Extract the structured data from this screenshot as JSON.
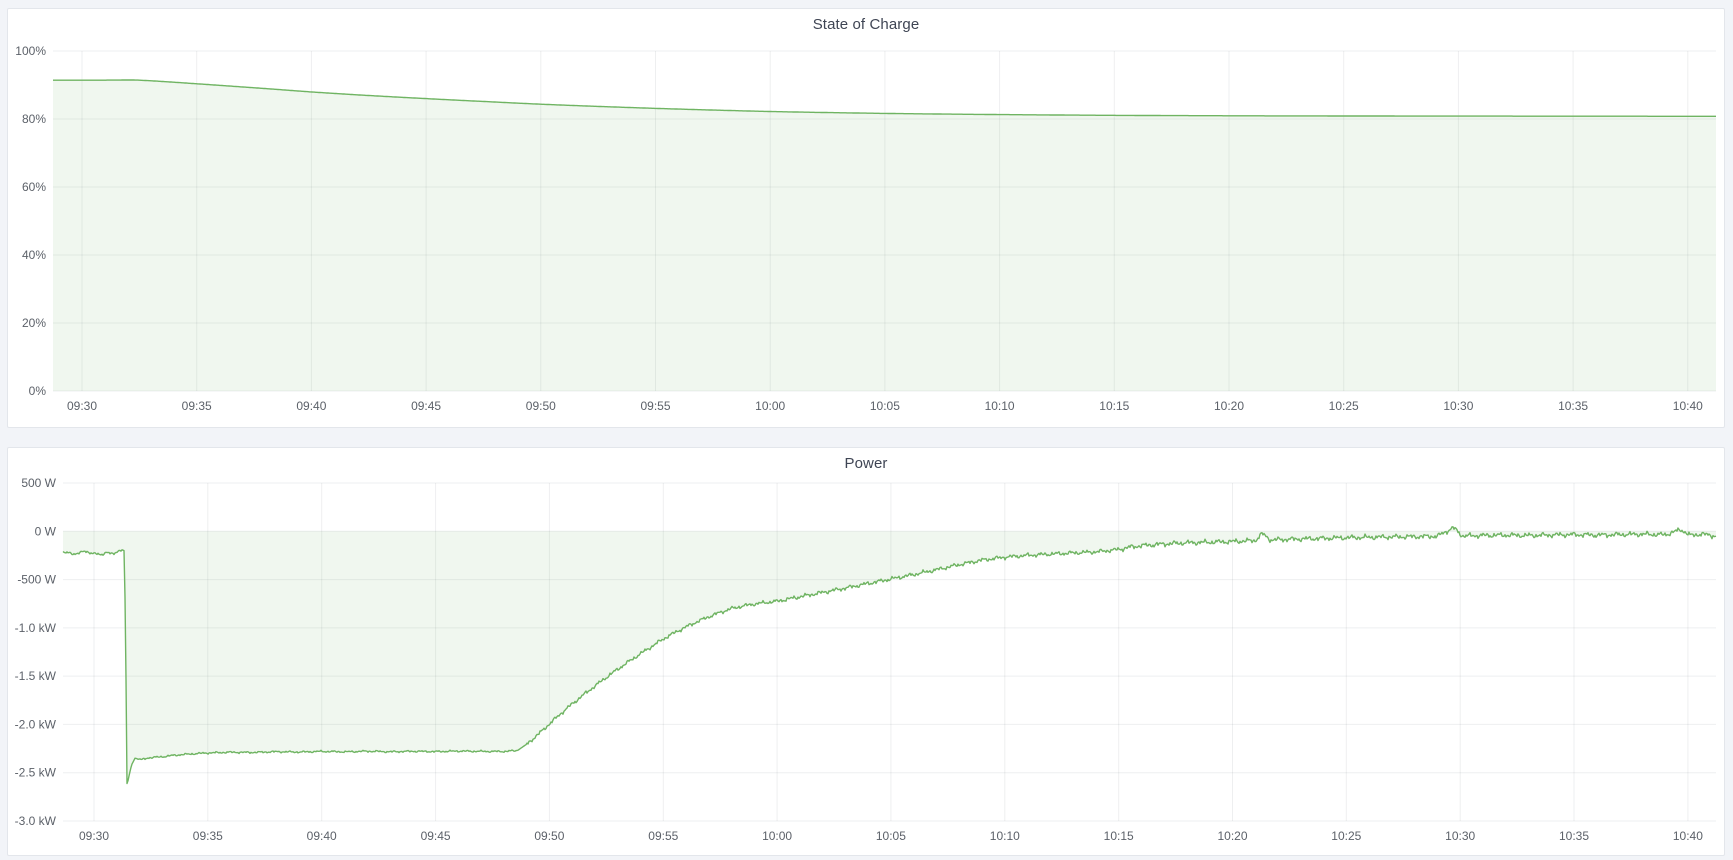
{
  "page": {
    "background_color": "#f2f4f8",
    "panel_background": "#ffffff",
    "panel_border_color": "#e3e6eb",
    "title_color": "#3f4554",
    "tick_label_color": "#5c6169",
    "grid_color": "rgba(20,30,40,0.07)"
  },
  "panels": [
    {
      "title": "State of Charge"
    },
    {
      "title": "Power"
    }
  ],
  "chart_data": [
    {
      "type": "area",
      "title": "State of Charge",
      "xlabel": "",
      "ylabel": "",
      "unit": "%",
      "line_color": "#6fb462",
      "fill_color": "rgba(111,180,98,0.10)",
      "grid": true,
      "legend": "none",
      "ylim": [
        0,
        100
      ],
      "y_tick_values": [
        100,
        80,
        60,
        40,
        20,
        0
      ],
      "y_tick_labels": [
        "100%",
        "80%",
        "60%",
        "40%",
        "20%",
        "0%"
      ],
      "x_tick_minutes": [
        0,
        5,
        10,
        15,
        20,
        25,
        30,
        35,
        40,
        45,
        50,
        55,
        60,
        65,
        70
      ],
      "x_tick_labels": [
        "09:30",
        "09:35",
        "09:40",
        "09:45",
        "09:50",
        "09:55",
        "10:00",
        "10:05",
        "10:10",
        "10:15",
        "10:20",
        "10:25",
        "10:30",
        "10:35",
        "10:40"
      ],
      "x_range_labeled": [
        "09:30",
        "10:40"
      ],
      "fill_to_value": 0,
      "series": [
        {
          "name": "State of Charge",
          "unit": "%",
          "points": [
            [
              -1.4,
              91.4
            ],
            [
              0,
              91.4
            ],
            [
              0.7,
              91.41
            ],
            [
              1.4,
              91.44
            ],
            [
              2,
              91.47
            ],
            [
              2.4,
              91.45
            ],
            [
              3,
              91.25
            ],
            [
              4,
              90.82
            ],
            [
              5,
              90.36
            ],
            [
              6,
              89.9
            ],
            [
              7,
              89.42
            ],
            [
              8,
              88.95
            ],
            [
              9,
              88.45
            ],
            [
              10,
              87.95
            ],
            [
              11,
              87.52
            ],
            [
              12,
              87.1
            ],
            [
              13,
              86.72
            ],
            [
              14,
              86.35
            ],
            [
              15,
              86.0
            ],
            [
              16,
              85.65
            ],
            [
              17,
              85.32
            ],
            [
              18,
              85.0
            ],
            [
              19,
              84.66
            ],
            [
              20,
              84.35
            ],
            [
              21,
              84.08
            ],
            [
              22,
              83.82
            ],
            [
              23,
              83.58
            ],
            [
              24,
              83.35
            ],
            [
              25,
              83.12
            ],
            [
              26,
              82.92
            ],
            [
              27,
              82.72
            ],
            [
              28,
              82.54
            ],
            [
              29,
              82.36
            ],
            [
              30,
              82.2
            ],
            [
              31,
              82.07
            ],
            [
              32,
              81.95
            ],
            [
              33,
              81.84
            ],
            [
              34,
              81.74
            ],
            [
              35,
              81.64
            ],
            [
              36,
              81.56
            ],
            [
              37,
              81.49
            ],
            [
              38,
              81.42
            ],
            [
              39,
              81.36
            ],
            [
              40,
              81.3
            ],
            [
              42,
              81.2
            ],
            [
              44,
              81.11
            ],
            [
              46,
              81.04
            ],
            [
              48,
              80.99
            ],
            [
              50,
              80.95
            ],
            [
              52,
              80.92
            ],
            [
              54,
              80.9
            ],
            [
              56,
              80.88
            ],
            [
              58,
              80.86
            ],
            [
              60,
              80.85
            ],
            [
              62,
              80.84
            ],
            [
              64,
              80.83
            ],
            [
              66,
              80.82
            ],
            [
              68,
              80.81
            ],
            [
              70,
              80.8
            ],
            [
              71.4,
              80.8
            ]
          ],
          "noise_segments": []
        }
      ]
    },
    {
      "type": "area",
      "title": "Power",
      "xlabel": "",
      "ylabel": "",
      "unit": "W",
      "line_color": "#6fb462",
      "fill_color": "rgba(111,180,98,0.10)",
      "grid": true,
      "legend": "none",
      "ylim": [
        -3000,
        500
      ],
      "y_tick_values": [
        500,
        0,
        -500,
        -1000,
        -1500,
        -2000,
        -2500,
        -3000
      ],
      "y_tick_labels": [
        "500 W",
        "0 W",
        "-500 W",
        "-1.0 kW",
        "-1.5 kW",
        "-2.0 kW",
        "-2.5 kW",
        "-3.0 kW"
      ],
      "x_tick_minutes": [
        0,
        5,
        10,
        15,
        20,
        25,
        30,
        35,
        40,
        45,
        50,
        55,
        60,
        65,
        70
      ],
      "x_tick_labels": [
        "09:30",
        "09:35",
        "09:40",
        "09:45",
        "09:50",
        "09:55",
        "10:00",
        "10:05",
        "10:10",
        "10:15",
        "10:20",
        "10:25",
        "10:30",
        "10:35",
        "10:40"
      ],
      "x_range_labeled": [
        "09:30",
        "10:40"
      ],
      "fill_to_value": 0,
      "series": [
        {
          "name": "Power",
          "unit": "W",
          "points": [
            [
              -1.4,
              -215
            ],
            [
              -0.9,
              -235
            ],
            [
              -0.4,
              -210
            ],
            [
              0,
              -228
            ],
            [
              0.3,
              -248
            ],
            [
              0.55,
              -212
            ],
            [
              0.85,
              -242
            ],
            [
              1.05,
              -205
            ],
            [
              1.2,
              -188
            ],
            [
              1.32,
              -200
            ],
            [
              1.38,
              -900
            ],
            [
              1.45,
              -2630
            ],
            [
              1.55,
              -2520
            ],
            [
              1.65,
              -2420
            ],
            [
              1.8,
              -2350
            ],
            [
              2.1,
              -2365
            ],
            [
              2.4,
              -2345
            ],
            [
              3,
              -2335
            ],
            [
              3.5,
              -2320
            ],
            [
              4,
              -2310
            ],
            [
              4.5,
              -2302
            ],
            [
              5,
              -2295
            ],
            [
              6,
              -2288
            ],
            [
              7,
              -2290
            ],
            [
              8,
              -2282
            ],
            [
              9,
              -2286
            ],
            [
              10,
              -2279
            ],
            [
              11,
              -2284
            ],
            [
              12,
              -2277
            ],
            [
              13,
              -2283
            ],
            [
              14,
              -2278
            ],
            [
              15,
              -2281
            ],
            [
              16,
              -2276
            ],
            [
              17,
              -2279
            ],
            [
              18,
              -2280
            ],
            [
              18.6,
              -2270
            ],
            [
              19,
              -2205
            ],
            [
              19.5,
              -2105
            ],
            [
              20,
              -1995
            ],
            [
              20.5,
              -1888
            ],
            [
              21,
              -1788
            ],
            [
              21.5,
              -1693
            ],
            [
              22,
              -1602
            ],
            [
              22.5,
              -1513
            ],
            [
              23,
              -1428
            ],
            [
              23.5,
              -1347
            ],
            [
              24,
              -1268
            ],
            [
              24.5,
              -1192
            ],
            [
              25,
              -1115
            ],
            [
              25.5,
              -1050
            ],
            [
              26,
              -990
            ],
            [
              26.5,
              -935
            ],
            [
              27,
              -885
            ],
            [
              27.5,
              -840
            ],
            [
              28,
              -800
            ],
            [
              28.5,
              -774
            ],
            [
              29,
              -753
            ],
            [
              29.5,
              -738
            ],
            [
              30,
              -724
            ],
            [
              31,
              -678
            ],
            [
              32,
              -633
            ],
            [
              33,
              -588
            ],
            [
              34,
              -540
            ],
            [
              35,
              -494
            ],
            [
              36,
              -448
            ],
            [
              37,
              -398
            ],
            [
              38,
              -345
            ],
            [
              39,
              -298
            ],
            [
              40,
              -268
            ],
            [
              41,
              -249
            ],
            [
              42,
              -236
            ],
            [
              43,
              -224
            ],
            [
              44,
              -213
            ],
            [
              45,
              -188
            ],
            [
              45.5,
              -164
            ],
            [
              46,
              -149
            ],
            [
              47,
              -131
            ],
            [
              48,
              -119
            ],
            [
              49,
              -113
            ],
            [
              50,
              -106
            ],
            [
              51,
              -96
            ],
            [
              51.3,
              -25
            ],
            [
              51.7,
              -92
            ],
            [
              52,
              -86
            ],
            [
              53,
              -79
            ],
            [
              54,
              -73
            ],
            [
              55,
              -66
            ],
            [
              56,
              -62
            ],
            [
              57,
              -58
            ],
            [
              58,
              -55
            ],
            [
              59,
              -51
            ],
            [
              59.7,
              38
            ],
            [
              60.1,
              -48
            ],
            [
              61,
              -43
            ],
            [
              62,
              -40
            ],
            [
              63,
              -44
            ],
            [
              64,
              -38
            ],
            [
              65,
              -34
            ],
            [
              66,
              -39
            ],
            [
              67,
              -34
            ],
            [
              68,
              -30
            ],
            [
              69,
              -36
            ],
            [
              69.7,
              18
            ],
            [
              70.1,
              -44
            ],
            [
              70.6,
              -28
            ],
            [
              71.4,
              -55
            ]
          ],
          "noise_segments": [
            {
              "from": -1.4,
              "to": 1.3,
              "amp": 12
            },
            {
              "from": 1.9,
              "to": 18.5,
              "amp": 9
            },
            {
              "from": 19,
              "to": 30,
              "amp": 18
            },
            {
              "from": 30,
              "to": 45,
              "amp": 20
            },
            {
              "from": 45,
              "to": 71.4,
              "amp": 24
            }
          ]
        }
      ]
    }
  ]
}
